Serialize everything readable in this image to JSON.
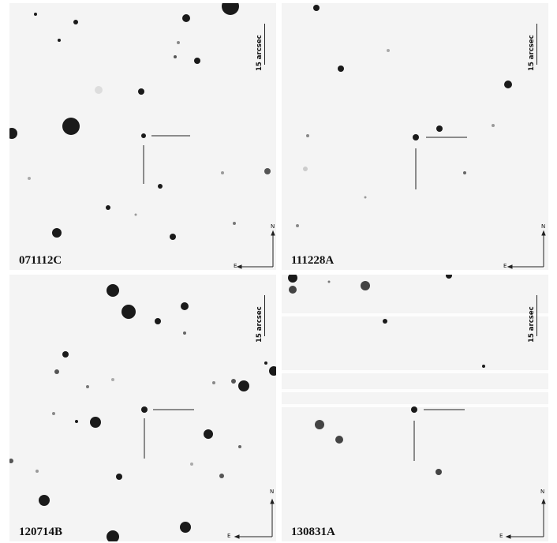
{
  "panels": [
    {
      "grb_id": "071112C",
      "scale_label": "15 arcsec",
      "north_label": "N",
      "east_label": "E"
    },
    {
      "grb_id": "111228A",
      "scale_label": "15 arcsec",
      "north_label": "N",
      "east_label": "E"
    },
    {
      "grb_id": "120714B",
      "scale_label": "15 arcsec",
      "north_label": "N",
      "east_label": "E"
    },
    {
      "grb_id": "130831A",
      "scale_label": "15 arcsec",
      "north_label": "N",
      "east_label": "E"
    }
  ],
  "colors": {
    "background": "#f4f4f4",
    "stars": "#1a1a1a"
  }
}
